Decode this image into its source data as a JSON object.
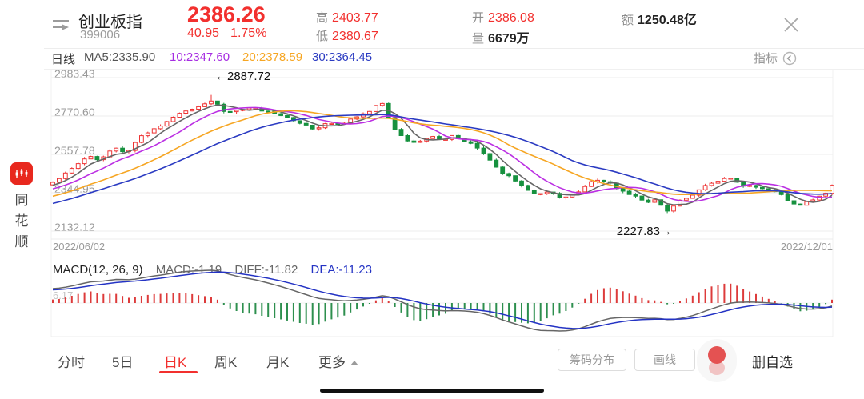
{
  "header": {
    "stock_name": "创业板指",
    "stock_code": "399006",
    "price": "2386.26",
    "change": "40.95",
    "change_pct": "1.75%",
    "high_label": "高",
    "high": "2403.77",
    "low_label": "低",
    "low": "2380.67",
    "open_label": "开",
    "open": "2386.08",
    "volume_label": "量",
    "volume": "6679万",
    "amount_label": "额",
    "amount": "1250.48亿"
  },
  "sidebar": {
    "brand_char_1": "同",
    "brand_char_2": "花",
    "brand_char_3": "顺"
  },
  "ma_bar": {
    "period": "日线",
    "ma5": "MA5:2335.90",
    "ma10": "10:2347.60",
    "ma20": "20:2378.59",
    "ma30": "30:2364.45",
    "indicator_label": "指标"
  },
  "colors": {
    "up": "#ee3333",
    "down": "#17913f",
    "ma5": "#666666",
    "ma10": "#bb2fe3",
    "ma20": "#f6a623",
    "ma30": "#2b3bc2",
    "macd_diff": "#666666",
    "macd_dea": "#2433c4",
    "hist_up": "#dd3b3b",
    "hist_down": "#2d8f4e",
    "accent_red": "#f2302e"
  },
  "chart_data": {
    "type": "candlestick",
    "title": "创业板指 日K",
    "x_start": "2022/06/02",
    "x_end": "2022/12/01",
    "y_ticks": [
      2983.43,
      2770.6,
      2557.78,
      2344.95,
      2132.12
    ],
    "y_tick_labels": [
      "2983.43",
      "2770.60",
      "2557.78",
      "2344.95",
      "2132.12"
    ],
    "num_candles": 124,
    "last_close": 2386.26,
    "annotations": {
      "high_text": "←2887.72",
      "high_value": 2887.72,
      "low_text": "2227.83→",
      "low_value": 2227.83
    },
    "lead_in": {
      "from": 2160,
      "to": 2395,
      "bars": 30
    },
    "close_path": [
      [
        0,
        2402
      ],
      [
        0.026,
        2482
      ],
      [
        0.046,
        2549
      ],
      [
        0.061,
        2527
      ],
      [
        0.077,
        2593
      ],
      [
        0.095,
        2562
      ],
      [
        0.102,
        2615
      ],
      [
        0.113,
        2660
      ],
      [
        0.133,
        2704
      ],
      [
        0.148,
        2748
      ],
      [
        0.169,
        2801
      ],
      [
        0.189,
        2828
      ],
      [
        0.205,
        2862
      ],
      [
        0.22,
        2793
      ],
      [
        0.241,
        2806
      ],
      [
        0.261,
        2810
      ],
      [
        0.281,
        2788
      ],
      [
        0.302,
        2762
      ],
      [
        0.32,
        2731
      ],
      [
        0.338,
        2686
      ],
      [
        0.353,
        2744
      ],
      [
        0.368,
        2717
      ],
      [
        0.384,
        2753
      ],
      [
        0.402,
        2788
      ],
      [
        0.422,
        2846
      ],
      [
        0.437,
        2713
      ],
      [
        0.452,
        2642
      ],
      [
        0.468,
        2615
      ],
      [
        0.483,
        2660
      ],
      [
        0.498,
        2637
      ],
      [
        0.514,
        2660
      ],
      [
        0.529,
        2629
      ],
      [
        0.545,
        2598
      ],
      [
        0.56,
        2531
      ],
      [
        0.575,
        2464
      ],
      [
        0.591,
        2420
      ],
      [
        0.606,
        2376
      ],
      [
        0.621,
        2331
      ],
      [
        0.637,
        2354
      ],
      [
        0.652,
        2309
      ],
      [
        0.667,
        2331
      ],
      [
        0.683,
        2376
      ],
      [
        0.698,
        2420
      ],
      [
        0.713,
        2398
      ],
      [
        0.729,
        2354
      ],
      [
        0.744,
        2331
      ],
      [
        0.76,
        2287
      ],
      [
        0.775,
        2309
      ],
      [
        0.79,
        2234
      ],
      [
        0.806,
        2309
      ],
      [
        0.821,
        2331
      ],
      [
        0.836,
        2376
      ],
      [
        0.852,
        2407
      ],
      [
        0.867,
        2434
      ],
      [
        0.882,
        2389
      ],
      [
        0.898,
        2376
      ],
      [
        0.913,
        2362
      ],
      [
        0.928,
        2354
      ],
      [
        0.944,
        2298
      ],
      [
        0.959,
        2271
      ],
      [
        0.975,
        2309
      ],
      [
        0.99,
        2331
      ],
      [
        1,
        2386.26
      ]
    ],
    "ma_periods": [
      5,
      10,
      20,
      30
    ],
    "macd_params": [
      12,
      26,
      9
    ]
  },
  "macd": {
    "title": "MACD(12, 26, 9)",
    "macd_text": "MACD:-1.19",
    "diff_text": "DIFF:-11.82",
    "dea_text": "DEA:-11.23",
    "axis_max": "6.17"
  },
  "footer": {
    "tabs": [
      {
        "label": "分时"
      },
      {
        "label": "5日"
      },
      {
        "label": "日K"
      },
      {
        "label": "周K"
      },
      {
        "label": "月K"
      },
      {
        "label": "更多"
      }
    ],
    "chip_button": "筹码分布",
    "draw_button": "画线",
    "delete_watch": "删自选"
  }
}
